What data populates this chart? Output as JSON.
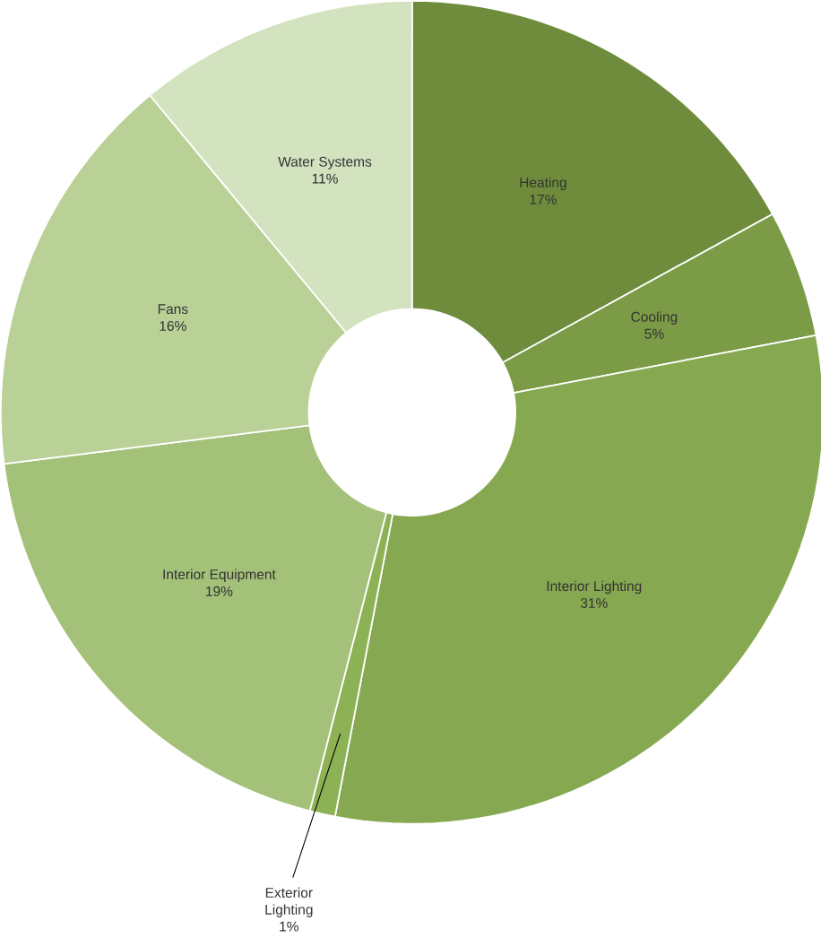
{
  "chart_data": {
    "type": "donut",
    "categories": [
      "Heating",
      "Cooling",
      "Interior Lighting",
      "Exterior Lighting",
      "Interior Equipment",
      "Fans",
      "Water Systems"
    ],
    "values": [
      17,
      5,
      31,
      1,
      19,
      16,
      11
    ],
    "value_labels": [
      "17%",
      "5%",
      "31%",
      "1%",
      "19%",
      "16%",
      "11%"
    ],
    "colors": [
      "#6e8c3c",
      "#7b9b47",
      "#86a850",
      "#8db255",
      "#a3c178",
      "#b9d197",
      "#d3e2bf"
    ]
  }
}
